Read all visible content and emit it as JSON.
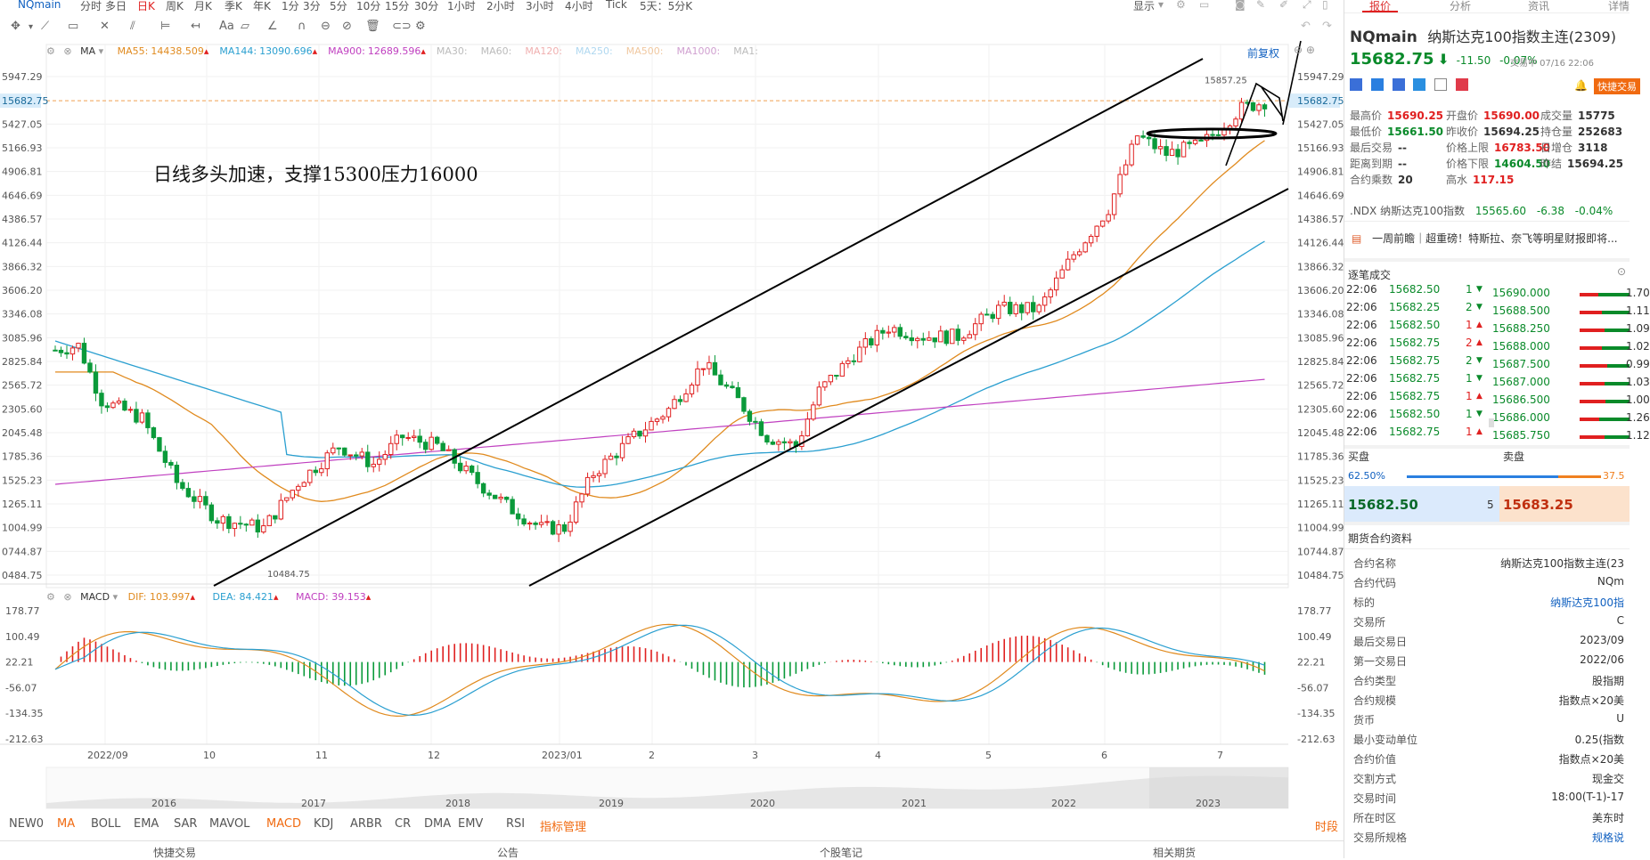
{
  "topbar": {
    "symbol": "NQmain",
    "periods": [
      "分时",
      "多日",
      "日K",
      "周K",
      "月K",
      "季K",
      "年K",
      "1分",
      "3分",
      "5分",
      "10分",
      "15分",
      "30分",
      "1小时",
      "2小时",
      "3小时",
      "4小时",
      "Tick",
      "5天：5分K"
    ],
    "display_label": "显示"
  },
  "toolbar": {
    "font_label": "Aa"
  },
  "main_chart": {
    "indicator_name": "MA",
    "ma_items": [
      {
        "label": "MA55:",
        "value": "14438.509",
        "color": "#e08a1e"
      },
      {
        "label": "MA144:",
        "value": "13090.696",
        "color": "#2a9fd0"
      },
      {
        "label": "MA900:",
        "value": "12689.596",
        "color": "#c040c0"
      },
      {
        "label": "MA30:",
        "value": "",
        "color": "#bbbbbb"
      },
      {
        "label": "MA60:",
        "value": "",
        "color": "#bbbbbb"
      },
      {
        "label": "MA120:",
        "value": "",
        "color": "#f0b0b0"
      },
      {
        "label": "MA250:",
        "value": "",
        "color": "#b0d8f0"
      },
      {
        "label": "MA500:",
        "value": "",
        "color": "#f0c8a0"
      },
      {
        "label": "MA1000:",
        "value": "",
        "color": "#d0a0d0"
      },
      {
        "label": "MA1:",
        "value": "",
        "color": "#bbbbbb"
      }
    ],
    "adjust_label": "前复权",
    "annotation": "日线多头加速，支撑15300压力16000",
    "high_label": "15857.25",
    "low_label": "10484.75",
    "current_price_tag": "15682.75",
    "y_ticks": [
      "15947.29",
      "15427.05",
      "15166.93",
      "14906.81",
      "14646.69",
      "14386.57",
      "14126.44",
      "13866.32",
      "13606.20",
      "13346.08",
      "13085.96",
      "12825.84",
      "12565.72",
      "12305.60",
      "12045.48",
      "11785.36",
      "11525.23",
      "11265.11",
      "11004.99",
      "10744.87",
      "10484.75"
    ],
    "y_ticks_left": [
      "5947.29",
      "5427.05",
      "5166.93",
      "4906.81",
      "4646.69",
      "4386.57",
      "4126.44",
      "3866.32",
      "3606.20",
      "3346.08",
      "3085.96",
      "2825.84",
      "2565.72",
      "2305.60",
      "2045.48",
      "1785.36",
      "1525.23",
      "1265.11",
      "1004.99",
      "0744.87",
      "0484.75"
    ],
    "left_price_tag": "15682.75"
  },
  "macd": {
    "name": "MACD",
    "dif_label": "DIF:",
    "dif_value": "103.997",
    "dea_label": "DEA:",
    "dea_value": "84.421",
    "macd_label": "MACD:",
    "macd_value": "39.153",
    "y_ticks": [
      "178.77",
      "100.49",
      "22.21",
      "-56.07",
      "-134.35",
      "-212.63"
    ]
  },
  "x_axis": {
    "labels": [
      "2022/09",
      "10",
      "11",
      "12",
      "2023/01",
      "2",
      "3",
      "4",
      "5",
      "6",
      "7"
    ]
  },
  "overview": {
    "years": [
      "2016",
      "2017",
      "2018",
      "2019",
      "2020",
      "2021",
      "2022",
      "2023"
    ]
  },
  "bottom_tabs": {
    "items": [
      "NEW0",
      "MA",
      "BOLL",
      "EMA",
      "SAR",
      "MAVOL",
      "MACD",
      "KDJ",
      "ARBR",
      "CR",
      "DMA",
      "EMV",
      "RSI",
      "指标管理"
    ],
    "right": "时段"
  },
  "footer": {
    "items": [
      "快捷交易",
      "公告",
      "个股笔记",
      "相关期货"
    ]
  },
  "right_panel": {
    "tabs": [
      "报价",
      "分析",
      "资讯",
      "详情"
    ],
    "symbol": "NQmain",
    "name": "纳斯达克100指数主连(2309)",
    "price": "15682.75",
    "change": "-11.50",
    "change_pct": "-0.07%",
    "trade_time": "交易中 07/16 22:06",
    "quick_trade": "快捷交易",
    "stats": [
      {
        "label": "最高价",
        "value": "15690.25",
        "cls": "red"
      },
      {
        "label": "开盘价",
        "value": "15690.00",
        "cls": "red"
      },
      {
        "label": "成交量",
        "value": "15775",
        "cls": ""
      },
      {
        "label": "最低价",
        "value": "15661.50",
        "cls": "green"
      },
      {
        "label": "昨收价",
        "value": "15694.25",
        "cls": ""
      },
      {
        "label": "持仓量",
        "value": "252683",
        "cls": ""
      },
      {
        "label": "最后交易",
        "value": "--",
        "cls": ""
      },
      {
        "label": "价格上限",
        "value": "16783.50",
        "cls": "red"
      },
      {
        "label": "日增仓",
        "value": "3118",
        "cls": ""
      },
      {
        "label": "距离到期",
        "value": "--",
        "cls": ""
      },
      {
        "label": "价格下限",
        "value": "14604.50",
        "cls": "green"
      },
      {
        "label": "昨结",
        "value": "15694.25",
        "cls": ""
      },
      {
        "label": "合约乘数",
        "value": "20",
        "cls": ""
      },
      {
        "label": "高水",
        "value": "117.15",
        "cls": "red"
      }
    ],
    "ndx_name": ".NDX 纳斯达克100指数",
    "ndx_price": "15565.60",
    "ndx_change": "-6.38",
    "ndx_pct": "-0.04%",
    "news": "一周前瞻｜超重磅！特斯拉、奈飞等明星财报即将...",
    "ticks_title": "逐笔成交",
    "ticks": [
      {
        "time": "22:06",
        "price": "15682.50",
        "vol": "1",
        "dir": "down"
      },
      {
        "time": "22:06",
        "price": "15682.25",
        "vol": "2",
        "dir": "down"
      },
      {
        "time": "22:06",
        "price": "15682.50",
        "vol": "1",
        "dir": "up"
      },
      {
        "time": "22:06",
        "price": "15682.75",
        "vol": "2",
        "dir": "up"
      },
      {
        "time": "22:06",
        "price": "15682.75",
        "vol": "2",
        "dir": "down"
      },
      {
        "time": "22:06",
        "price": "15682.75",
        "vol": "1",
        "dir": "down"
      },
      {
        "time": "22:06",
        "price": "15682.75",
        "vol": "1",
        "dir": "up"
      },
      {
        "time": "22:06",
        "price": "15682.50",
        "vol": "1",
        "dir": "down"
      },
      {
        "time": "22:06",
        "price": "15682.75",
        "vol": "1",
        "dir": "up"
      }
    ],
    "depth": [
      {
        "price": "15690.000",
        "val": "1.70",
        "fill": 0.62
      },
      {
        "price": "15688.500",
        "val": "1.11",
        "fill": 0.55
      },
      {
        "price": "15688.250",
        "val": "1.09",
        "fill": 0.5
      },
      {
        "price": "15688.000",
        "val": "1.02",
        "fill": 0.55
      },
      {
        "price": "15687.500",
        "val": "0.99",
        "fill": 0.45
      },
      {
        "price": "15687.000",
        "val": "1.03",
        "fill": 0.5
      },
      {
        "price": "15686.500",
        "val": "1.00",
        "fill": 0.48
      },
      {
        "price": "15686.000",
        "val": "1.26",
        "fill": 0.6
      },
      {
        "price": "15685.750",
        "val": "1.12",
        "fill": 0.5
      }
    ],
    "buy_label": "买盘",
    "sell_label": "卖盘",
    "buy_pct": "62.50%",
    "sell_pct": "37.5",
    "bid_price": "15682.50",
    "bid_vol": "5",
    "ask_price": "15683.25",
    "contract_title": "期货合约资料",
    "contract": [
      {
        "label": "合约名称",
        "value": "纳斯达克100指数主连(23"
      },
      {
        "label": "合约代码",
        "value": "NQm"
      },
      {
        "label": "标的",
        "value": "纳斯达克100指"
      },
      {
        "label": "交易所",
        "value": "C"
      },
      {
        "label": "最后交易日",
        "value": "2023/09"
      },
      {
        "label": "第一交易日",
        "value": "2022/06"
      },
      {
        "label": "合约类型",
        "value": "股指期"
      },
      {
        "label": "合约规模",
        "value": "指数点×20美"
      },
      {
        "label": "货币",
        "value": "U"
      },
      {
        "label": "最小变动单位",
        "value": "0.25(指数"
      },
      {
        "label": "合约价值",
        "value": "指数点×20美"
      },
      {
        "label": "交割方式",
        "value": "现金交"
      },
      {
        "label": "交易时间",
        "value": "18:00(T-1)-17"
      },
      {
        "label": "所在时区",
        "value": "美东时"
      },
      {
        "label": "交易所规格",
        "value": "规格说"
      }
    ]
  }
}
